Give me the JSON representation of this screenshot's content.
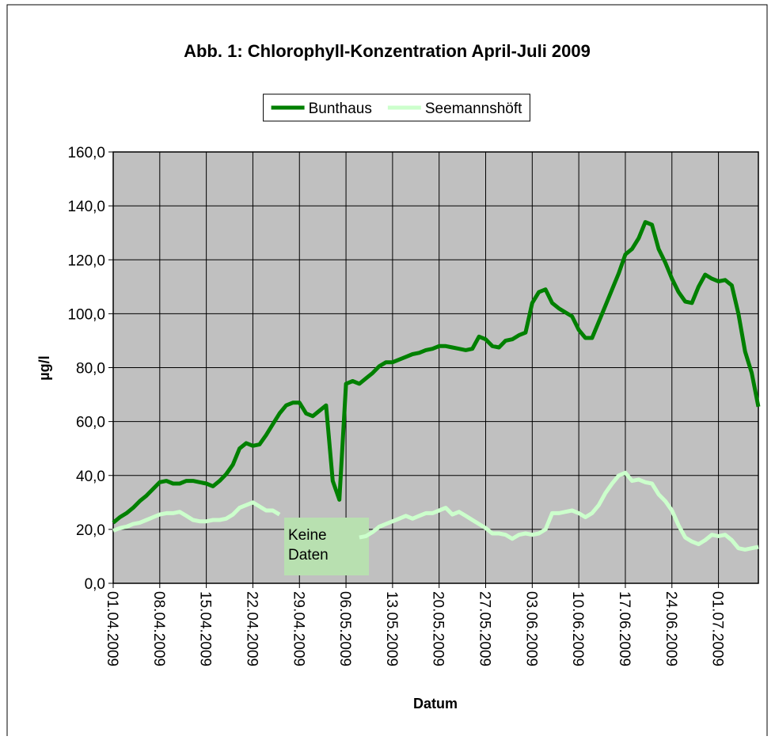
{
  "chart_data": {
    "type": "line",
    "title": "Abb. 1: Chlorophyll-Konzentration April-Juli 2009",
    "xlabel": "Datum",
    "ylabel": "µg/l",
    "annotation": "Keine Daten",
    "x": [
      "01.04.2009",
      "02.04.2009",
      "03.04.2009",
      "04.04.2009",
      "05.04.2009",
      "06.04.2009",
      "07.04.2009",
      "08.04.2009",
      "09.04.2009",
      "10.04.2009",
      "11.04.2009",
      "12.04.2009",
      "13.04.2009",
      "14.04.2009",
      "15.04.2009",
      "16.04.2009",
      "17.04.2009",
      "18.04.2009",
      "19.04.2009",
      "20.04.2009",
      "21.04.2009",
      "22.04.2009",
      "23.04.2009",
      "24.04.2009",
      "25.04.2009",
      "26.04.2009",
      "27.04.2009",
      "28.04.2009",
      "29.04.2009",
      "30.04.2009",
      "01.05.2009",
      "02.05.2009",
      "03.05.2009",
      "04.05.2009",
      "05.05.2009",
      "06.05.2009",
      "07.05.2009",
      "08.05.2009",
      "09.05.2009",
      "10.05.2009",
      "11.05.2009",
      "12.05.2009",
      "13.05.2009",
      "14.05.2009",
      "15.05.2009",
      "16.05.2009",
      "17.05.2009",
      "18.05.2009",
      "19.05.2009",
      "20.05.2009",
      "21.05.2009",
      "22.05.2009",
      "23.05.2009",
      "24.05.2009",
      "25.05.2009",
      "26.05.2009",
      "27.05.2009",
      "28.05.2009",
      "29.05.2009",
      "30.05.2009",
      "31.05.2009",
      "01.06.2009",
      "02.06.2009",
      "03.06.2009",
      "04.06.2009",
      "05.06.2009",
      "06.06.2009",
      "07.06.2009",
      "08.06.2009",
      "09.06.2009",
      "10.06.2009",
      "11.06.2009",
      "12.06.2009",
      "13.06.2009",
      "14.06.2009",
      "15.06.2009",
      "16.06.2009",
      "17.06.2009",
      "18.06.2009",
      "19.06.2009",
      "20.06.2009",
      "21.06.2009",
      "22.06.2009",
      "23.06.2009",
      "24.06.2009",
      "25.06.2009",
      "26.06.2009",
      "27.06.2009",
      "28.06.2009",
      "29.06.2009",
      "30.06.2009",
      "01.07.2009",
      "02.07.2009",
      "03.07.2009",
      "04.07.2009",
      "05.07.2009",
      "06.07.2009",
      "07.07.2009"
    ],
    "series": [
      {
        "name": "Bunthaus",
        "color": "#008000",
        "values": [
          22.5,
          24.5,
          26,
          28,
          30.5,
          32.5,
          35,
          37.5,
          38,
          37,
          37,
          38,
          38,
          37.5,
          37,
          36,
          38,
          40.5,
          44,
          50,
          52,
          51,
          51.5,
          55,
          59,
          63,
          66,
          67,
          67,
          63,
          62,
          64,
          66,
          38,
          31,
          74,
          75,
          74,
          76,
          78,
          80.5,
          82,
          82,
          83,
          84,
          85,
          85.5,
          86.5,
          87,
          88,
          88,
          87.5,
          87,
          86.5,
          87,
          91.5,
          90.5,
          88,
          87.5,
          90,
          90.5,
          92,
          93,
          104,
          108,
          109,
          104,
          102,
          100.5,
          99,
          94,
          91,
          91,
          97,
          103,
          109,
          115,
          122,
          124,
          128,
          134,
          133,
          124,
          119,
          113,
          108,
          104.5,
          104,
          110,
          114.5,
          113,
          112,
          112.5,
          110.5,
          100,
          86,
          78,
          65.5
        ]
      },
      {
        "name": "Seemannshöft",
        "color": "#ccffcc",
        "values": [
          19.5,
          20.5,
          21,
          22,
          22.5,
          23.5,
          24.5,
          25.5,
          26,
          26,
          26.5,
          25,
          23.5,
          23,
          23,
          23.5,
          23.5,
          24,
          25.5,
          28,
          29,
          30,
          28.5,
          27,
          27,
          25.5,
          null,
          null,
          null,
          null,
          null,
          null,
          null,
          null,
          null,
          null,
          null,
          17,
          17.5,
          19,
          21,
          22,
          23,
          24,
          25,
          24,
          25,
          26,
          26,
          27,
          28,
          25.5,
          26.5,
          25,
          23.5,
          22,
          20.5,
          18.5,
          18.5,
          18,
          16.5,
          18,
          18.5,
          18,
          18.5,
          20,
          26,
          26,
          26.5,
          27,
          26,
          24.5,
          26,
          29,
          33.5,
          37,
          40,
          41,
          38,
          38.5,
          37.5,
          37,
          33,
          30.5,
          27,
          21.5,
          17,
          15.5,
          14.5,
          16,
          18,
          17.5,
          18,
          16,
          13,
          12.5,
          13,
          13.5
        ]
      }
    ],
    "xlim": [
      "01.04.2009",
      "07.07.2009"
    ],
    "xticks": [
      "01.04.2009",
      "08.04.2009",
      "15.04.2009",
      "22.04.2009",
      "29.04.2009",
      "06.05.2009",
      "13.05.2009",
      "20.05.2009",
      "27.05.2009",
      "03.06.2009",
      "10.06.2009",
      "17.06.2009",
      "24.06.2009",
      "01.07.2009"
    ],
    "ylim": [
      0,
      160
    ],
    "yticks": [
      {
        "value": 0,
        "label": "0,0"
      },
      {
        "value": 20,
        "label": "20,0"
      },
      {
        "value": 40,
        "label": "40,0"
      },
      {
        "value": 60,
        "label": "60,0"
      },
      {
        "value": 80,
        "label": "80,0"
      },
      {
        "value": 100,
        "label": "100,0"
      },
      {
        "value": 120,
        "label": "120,0"
      },
      {
        "value": 140,
        "label": "140,0"
      },
      {
        "value": 160,
        "label": "160,0"
      }
    ],
    "grid": true,
    "legend": "top",
    "plot_background": "#c0c0c0",
    "annotation_color": "#b8e0b0"
  }
}
